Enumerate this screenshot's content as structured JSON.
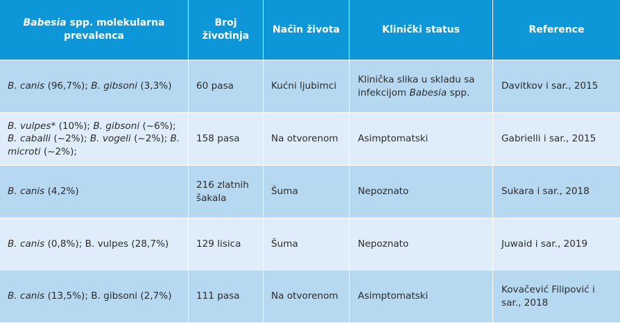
{
  "colors": {
    "header_bg": "#0d97d9",
    "row_dark": "#b6d8f0",
    "row_light": "#deedf9",
    "header_text": "#ffffff"
  },
  "headers": {
    "col1_italic": "Babesia",
    "col1_rest": " spp. molekularna prevalenca",
    "col2": "Broj životinja",
    "col3": "Način života",
    "col4": "Klinički status",
    "col5": "Reference"
  },
  "rows": [
    {
      "prevalence": [
        {
          "t": "B. canis",
          "i": true
        },
        {
          "t": " (96,7%); ",
          "i": false
        },
        {
          "t": "B. gibsoni",
          "i": true
        },
        {
          "t": " (3,3%)",
          "i": false
        }
      ],
      "animals": "60 pasa",
      "lifestyle": "Kućni ljubimci",
      "clinical": [
        {
          "t": "Klinička slika u skladu sa infekcijom ",
          "i": false
        },
        {
          "t": "Babesia",
          "i": true
        },
        {
          "t": " spp.",
          "i": false
        }
      ],
      "reference": "Davitkov i sar., 2015"
    },
    {
      "prevalence": [
        {
          "t": "B. vulpes",
          "i": true
        },
        {
          "t": "* (10%); ",
          "i": false
        },
        {
          "t": "B. gibsoni",
          "i": true
        },
        {
          "t": " (~6%); ",
          "i": false
        },
        {
          "t": "B. caballi",
          "i": true
        },
        {
          "t": " (~2%); ",
          "i": false
        },
        {
          "t": "B. vogeli",
          "i": true
        },
        {
          "t": " (~2%); ",
          "i": false
        },
        {
          "t": "B. microti",
          "i": true
        },
        {
          "t": " (~2%);",
          "i": false
        }
      ],
      "animals": "158 pasa",
      "lifestyle": "Na otvorenom",
      "clinical": [
        {
          "t": "Asimptomatski",
          "i": false
        }
      ],
      "reference": "Gabrielli i sar., 2015"
    },
    {
      "prevalence": [
        {
          "t": "B. canis",
          "i": true
        },
        {
          "t": " (4,2%)",
          "i": false
        }
      ],
      "animals": "216 zlatnih šakala",
      "lifestyle": "Šuma",
      "clinical": [
        {
          "t": "Nepoznato",
          "i": false
        }
      ],
      "reference": "Sukara i sar., 2018"
    },
    {
      "prevalence": [
        {
          "t": "B. canis",
          "i": true
        },
        {
          "t": " (0,8%); B. vulpes (28,7%)",
          "i": false
        }
      ],
      "animals": "129 lisica",
      "lifestyle": "Šuma",
      "clinical": [
        {
          "t": "Nepoznato",
          "i": false
        }
      ],
      "reference": "Juwaid i sar., 2019"
    },
    {
      "prevalence": [
        {
          "t": "B. canis",
          "i": true
        },
        {
          "t": " (13,5%); B. gibsoni (2,7%)",
          "i": false
        }
      ],
      "animals": "111 pasa",
      "lifestyle": "Na otvorenom",
      "clinical": [
        {
          "t": "Asimptomatski",
          "i": false
        }
      ],
      "reference": "Kovačević Filipović i sar., 2018"
    }
  ]
}
